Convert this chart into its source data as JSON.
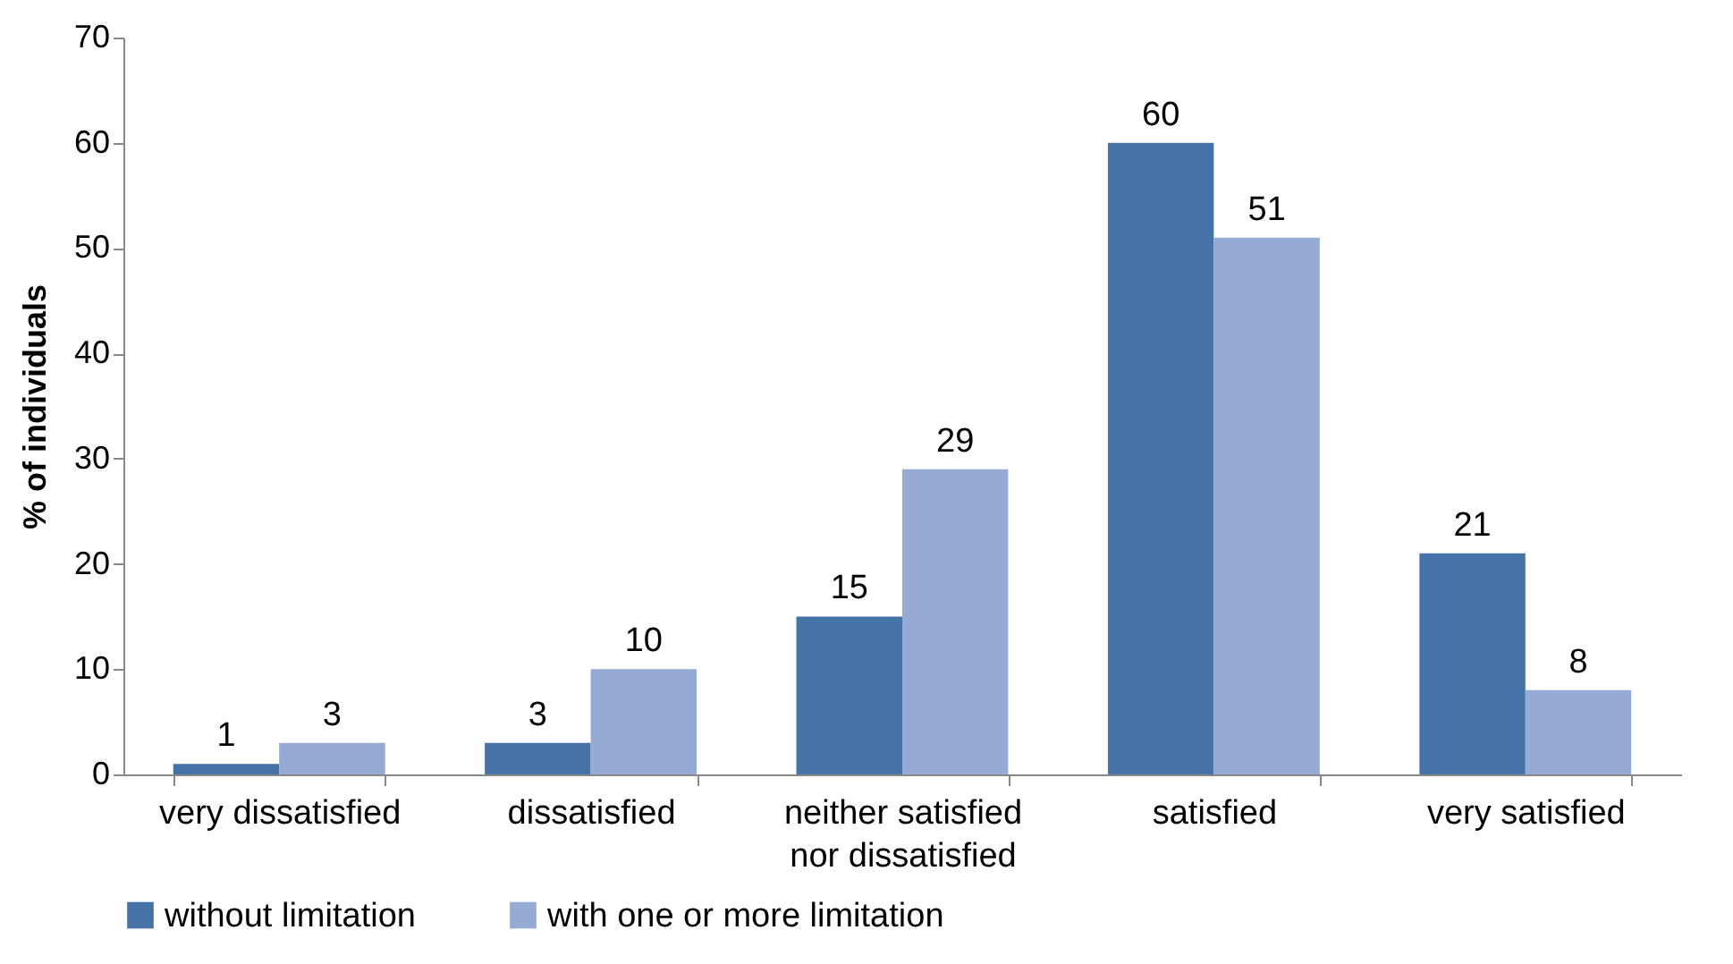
{
  "chart_data": {
    "type": "bar",
    "ylabel": "% of individuals",
    "categories": [
      "very dissatisfied",
      "dissatisfied",
      "neither satisfied\nnor dissatisfied",
      "satisfied",
      "very satisfied"
    ],
    "series": [
      {
        "name": "without limitation",
        "color": "#4573a7",
        "values": [
          1,
          3,
          15,
          60,
          21
        ]
      },
      {
        "name": "with one or more limitation",
        "color": "#95abd4",
        "values": [
          3,
          10,
          29,
          51,
          8
        ]
      }
    ],
    "ylim": [
      0,
      70
    ],
    "yticks": [
      0,
      10,
      20,
      30,
      40,
      50,
      60,
      70
    ],
    "grid": false,
    "legend": "bottom",
    "data_labels": true
  }
}
